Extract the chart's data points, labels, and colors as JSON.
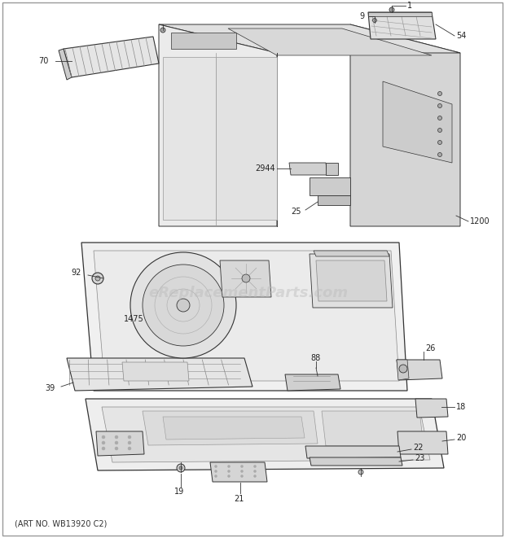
{
  "bg_color": "#ffffff",
  "line_color": "#333333",
  "art_no": "(ART NO. WB13920 C2)",
  "watermark": "eReplacementParts.com",
  "watermark_color": "#bbbbbb",
  "gray_light": "#e8e8e8",
  "gray_mid": "#d0d0d0",
  "gray_dark": "#b0b0b0",
  "gray_fill": "#c8c8c8"
}
